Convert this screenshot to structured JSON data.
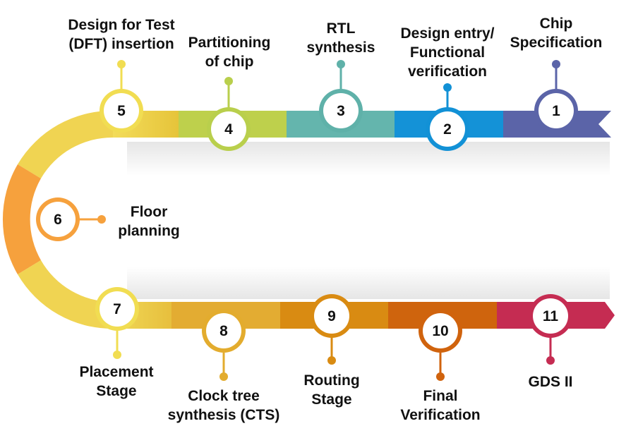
{
  "steps": [
    {
      "number": "1",
      "label": [
        "Chip",
        "Specification"
      ],
      "color": "#5b64a8"
    },
    {
      "number": "2",
      "label": [
        "Design entry/",
        "Functional",
        "verification"
      ],
      "color": "#1291d6"
    },
    {
      "number": "3",
      "label": [
        "RTL",
        "synthesis"
      ],
      "color": "#5fb1a9"
    },
    {
      "number": "4",
      "label": [
        "Partitioning",
        "of chip"
      ],
      "color": "#b9cf4c"
    },
    {
      "number": "5",
      "label": [
        "Design for Test",
        "(DFT) insertion"
      ],
      "color": "#f1dd52"
    },
    {
      "number": "6",
      "label": [
        "Floor",
        "planning"
      ],
      "color": "#f6a13d"
    },
    {
      "number": "7",
      "label": [
        "Placement",
        "Stage"
      ],
      "color": "#f1dd52"
    },
    {
      "number": "8",
      "label": [
        "Clock tree",
        "synthesis (CTS)"
      ],
      "color": "#e3ac2e"
    },
    {
      "number": "9",
      "label": [
        "Routing",
        "Stage"
      ],
      "color": "#d98b12"
    },
    {
      "number": "10",
      "label": [
        "Final",
        "Verification"
      ],
      "color": "#d0630d"
    },
    {
      "number": "11",
      "label": [
        "GDS II"
      ],
      "color": "#c52c52"
    }
  ]
}
